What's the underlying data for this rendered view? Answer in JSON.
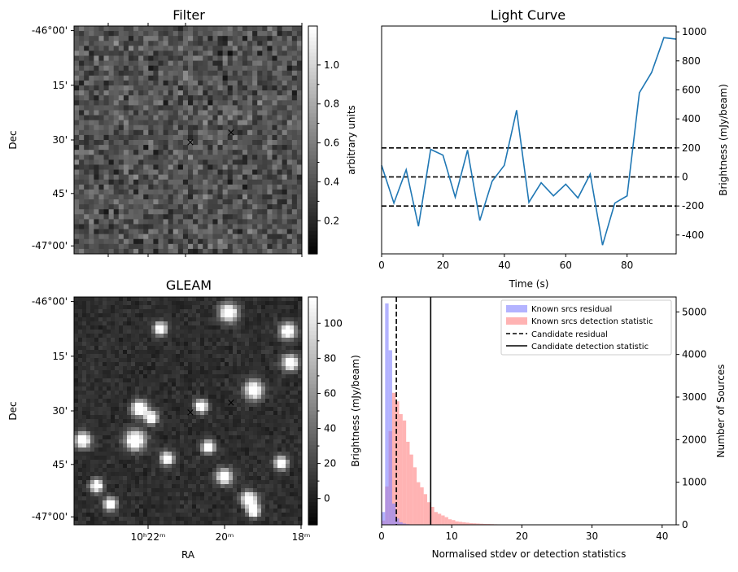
{
  "chart_data": [
    {
      "type": "heatmap",
      "title": "Filter",
      "xlabel": "",
      "ylabel": "Dec",
      "y_ticks": [
        "-46°00'",
        "15'",
        "30'",
        "45'",
        "-47°00'"
      ],
      "colorbar": {
        "label": "arbitrary units",
        "range": [
          0.03,
          1.2
        ],
        "ticks": [
          "0.2",
          "0.4",
          "0.6",
          "0.8",
          "1.0"
        ],
        "tick_values": [
          0.2,
          0.4,
          0.6,
          0.8,
          1.0
        ]
      },
      "markers": [
        {
          "symbol": "×",
          "color": "#e41a1c"
        },
        {
          "symbol": "×",
          "color": "#0000cc"
        }
      ]
    },
    {
      "type": "line",
      "title": "Light Curve",
      "xlabel": "Time (s)",
      "ylabel": "Brightness (mJy/beam)",
      "xlim": [
        0,
        96
      ],
      "ylim": [
        -530,
        1040
      ],
      "x_ticks": [
        0,
        20,
        40,
        60,
        80
      ],
      "y_ticks": [
        -400,
        -200,
        0,
        200,
        400,
        600,
        800,
        1000
      ],
      "series": [
        {
          "color": "#1f77b4",
          "x": [
            0,
            4,
            8,
            12,
            16,
            20,
            24,
            28,
            32,
            36,
            40,
            44,
            48,
            52,
            56,
            60,
            64,
            68,
            72,
            76,
            80,
            84,
            88,
            92,
            96
          ],
          "y": [
            80,
            -180,
            50,
            -340,
            190,
            150,
            -140,
            185,
            -300,
            -30,
            80,
            460,
            -175,
            -40,
            -130,
            -50,
            -145,
            20,
            -470,
            -180,
            -130,
            580,
            720,
            960,
            950
          ]
        }
      ],
      "hlines": [
        {
          "y": 200,
          "style": "dashed",
          "color": "#000000"
        },
        {
          "y": 0,
          "style": "dashed",
          "color": "#000000"
        },
        {
          "y": -200,
          "style": "dashed",
          "color": "#000000"
        }
      ]
    },
    {
      "type": "heatmap",
      "title": "GLEAM",
      "xlabel": "RA",
      "ylabel": "Dec",
      "y_ticks": [
        "-46°00'",
        "15'",
        "30'",
        "45'",
        "-47°00'"
      ],
      "x_ticks": [
        "10ʰ22ᵐ",
        "20ᵐ",
        "18ᵐ"
      ],
      "colorbar": {
        "label": "Brightness (mJy/beam)",
        "range": [
          -15,
          115
        ],
        "ticks": [
          "0",
          "20",
          "40",
          "60",
          "80",
          "100"
        ],
        "tick_values": [
          0,
          20,
          40,
          60,
          80,
          100
        ]
      },
      "markers": [
        {
          "symbol": "×",
          "color": "#e41a1c"
        },
        {
          "symbol": "×",
          "color": "#0000cc"
        }
      ]
    },
    {
      "type": "bar",
      "subtype": "histogram",
      "xlabel": "Normalised stdev or detection statistics",
      "ylabel": "Number of Sources",
      "xlim": [
        0,
        42
      ],
      "ylim": [
        0,
        5350
      ],
      "x_ticks": [
        0,
        10,
        20,
        30,
        40
      ],
      "y_ticks": [
        0,
        1000,
        2000,
        3000,
        4000,
        5000
      ],
      "bin_width": 0.5,
      "series": [
        {
          "name": "Known srcs residual",
          "color": "#8080ff",
          "values": [
            300,
            5200,
            4100,
            500,
            150,
            60,
            30,
            15,
            8,
            4,
            2,
            1
          ]
        },
        {
          "name": "Known srcs detection statistic",
          "color": "#ff8080",
          "values": [
            100,
            900,
            2200,
            3100,
            2900,
            2600,
            2450,
            1950,
            1650,
            1350,
            1000,
            880,
            720,
            530,
            420,
            300,
            260,
            220,
            180,
            130,
            110,
            80,
            70,
            60,
            50,
            40,
            35,
            30,
            25,
            20,
            18,
            15,
            12,
            10,
            8,
            7,
            6,
            5,
            4,
            4,
            3,
            3
          ]
        }
      ],
      "vlines": [
        {
          "name": "Candidate residual",
          "x": 2.1,
          "style": "dashed",
          "color": "#000000"
        },
        {
          "name": "Candidate detection statistic",
          "x": 7.0,
          "style": "solid",
          "color": "#000000"
        }
      ],
      "legend_position": "top-right"
    }
  ]
}
